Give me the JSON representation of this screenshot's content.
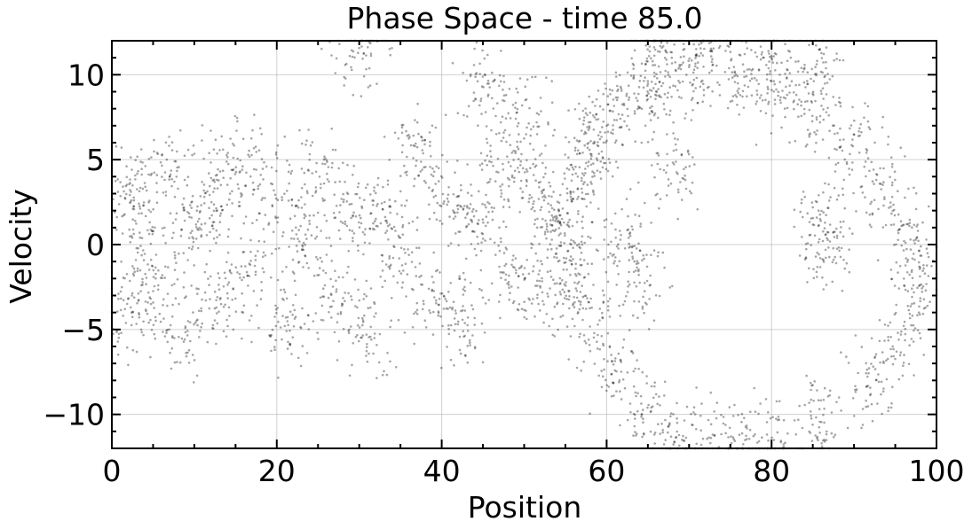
{
  "chart_data": {
    "type": "scatter",
    "title": "Phase Space - time 85.0",
    "xlabel": "Position",
    "ylabel": "Velocity",
    "xlim": [
      0,
      100
    ],
    "ylim": [
      -12,
      12
    ],
    "x_ticks": [
      0,
      20,
      40,
      60,
      80,
      100
    ],
    "x_tick_labels": [
      "0",
      "20",
      "40",
      "60",
      "80",
      "100"
    ],
    "y_ticks": [
      -10,
      -5,
      0,
      5,
      10
    ],
    "y_tick_labels": [
      "−10",
      "−5",
      "0",
      "5",
      "10"
    ],
    "grid": true,
    "point_color": "#000000",
    "point_opacity": 0.35,
    "distribution": {
      "description_of_regions": [
        "dense horizontal band of particles for x from 0 to about 55 with velocities between about -7 and 6",
        "particle ring (trapped vortex) centred near x = 77, v = -1, spanning x 55 to 100 and v -12 to 12",
        "sparse stray particles elsewhere, slightly denser inside ring edge"
      ],
      "points": [
        [
          2,
          3.1
        ],
        [
          2,
          -4.2
        ],
        [
          4,
          1.2
        ],
        [
          5,
          -2.3
        ],
        [
          7,
          4.4
        ],
        [
          8,
          -5.1
        ],
        [
          10,
          0.6
        ],
        [
          12,
          2.7
        ],
        [
          13,
          -3.6
        ],
        [
          15,
          5.0
        ],
        [
          17,
          -1.4
        ],
        [
          19,
          3.5
        ],
        [
          21,
          -4.8
        ],
        [
          23,
          0.2
        ],
        [
          25,
          4.1
        ],
        [
          27,
          -2.9
        ],
        [
          29,
          1.8
        ],
        [
          31,
          -5.6
        ],
        [
          33,
          3.0
        ],
        [
          35,
          -0.7
        ],
        [
          37,
          5.4
        ],
        [
          39,
          -3.2
        ],
        [
          41,
          2.2
        ],
        [
          43,
          -4.4
        ],
        [
          45,
          0.9
        ],
        [
          47,
          4.7
        ],
        [
          49,
          -1.9
        ],
        [
          51,
          3.6
        ],
        [
          53,
          -3.0
        ],
        [
          54,
          1.0
        ],
        [
          58,
          6.0
        ],
        [
          60,
          7.5
        ],
        [
          63,
          8.8
        ],
        [
          66,
          9.6
        ],
        [
          70,
          10.1
        ],
        [
          75,
          10.0
        ],
        [
          80,
          9.2
        ],
        [
          85,
          7.9
        ],
        [
          90,
          5.8
        ],
        [
          94,
          3.1
        ],
        [
          97,
          0.2
        ],
        [
          98,
          -2.5
        ],
        [
          96,
          -5.5
        ],
        [
          92,
          -8.2
        ],
        [
          86,
          -10.2
        ],
        [
          80,
          -11.3
        ],
        [
          75,
          -11.6
        ],
        [
          70,
          -11.0
        ],
        [
          65,
          -9.8
        ],
        [
          61,
          -7.4
        ],
        [
          58,
          -4.6
        ],
        [
          56,
          -1.6
        ],
        [
          55,
          1.8
        ],
        [
          57,
          4.2
        ],
        [
          68,
          4.6
        ],
        [
          86,
          1.5
        ],
        [
          87,
          -0.5
        ],
        [
          64,
          -2.0
        ],
        [
          62,
          0.4
        ],
        [
          66,
          12.0
        ],
        [
          72,
          11.9
        ],
        [
          80,
          11.2
        ],
        [
          86,
          10.4
        ],
        [
          50,
          7.6
        ],
        [
          45,
          9.2
        ],
        [
          30,
          11.5
        ]
      ]
    }
  }
}
